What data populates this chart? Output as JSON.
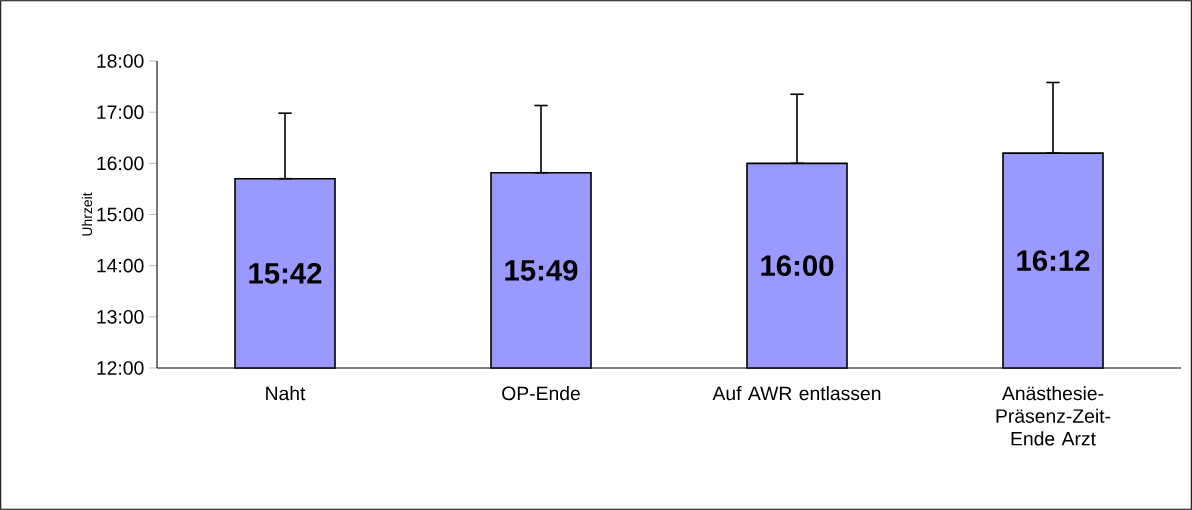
{
  "chart_data": {
    "type": "bar",
    "ylabel": "Uhrzeit",
    "categories": [
      "Naht",
      "OP-Ende",
      "Auf AWR entlassen",
      "Anästhesie-Präsenz-Zeit-Ende Arzt"
    ],
    "values": [
      15.7,
      15.8167,
      16.0,
      16.2
    ],
    "value_labels": [
      "15:42",
      "15:49",
      "16:00",
      "16:12"
    ],
    "errors": [
      [
        15.7,
        16.98
      ],
      [
        15.8167,
        17.13
      ],
      [
        16.0,
        17.35
      ],
      [
        16.2,
        17.58
      ]
    ],
    "color": "#9999ff",
    "ylim": [
      12,
      18
    ],
    "yticks": [
      {
        "value": 12,
        "label": "12:00"
      },
      {
        "value": 13,
        "label": "13:00"
      },
      {
        "value": 14,
        "label": "14:00"
      },
      {
        "value": 15,
        "label": "15:00"
      },
      {
        "value": 16,
        "label": "16:00"
      },
      {
        "value": 17,
        "label": "17:00"
      },
      {
        "value": 18,
        "label": "18:00"
      }
    ]
  }
}
